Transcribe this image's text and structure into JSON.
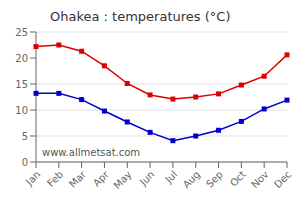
{
  "chart_data": {
    "type": "line",
    "title": "Ohakea : temperatures (°C)",
    "categories": [
      "Jan",
      "Feb",
      "Mar",
      "Apr",
      "May",
      "Jun",
      "Jul",
      "Aug",
      "Sep",
      "Oct",
      "Nov",
      "Dec"
    ],
    "series": [
      {
        "color": "#dd0000",
        "marker": "square",
        "values": [
          22.2,
          22.5,
          21.3,
          18.5,
          15.1,
          12.9,
          12.1,
          12.5,
          13.1,
          14.8,
          16.5,
          20.6
        ]
      },
      {
        "color": "#0000cc",
        "marker": "square",
        "values": [
          13.2,
          13.2,
          12.0,
          9.8,
          7.7,
          5.7,
          4.1,
          5.0,
          6.1,
          7.8,
          10.2,
          11.9
        ]
      }
    ],
    "ylim": [
      0,
      25
    ],
    "yticks": [
      0,
      5,
      10,
      15,
      20,
      25
    ],
    "grid": true,
    "annotations": [
      "www.allmetsat.com"
    ]
  }
}
